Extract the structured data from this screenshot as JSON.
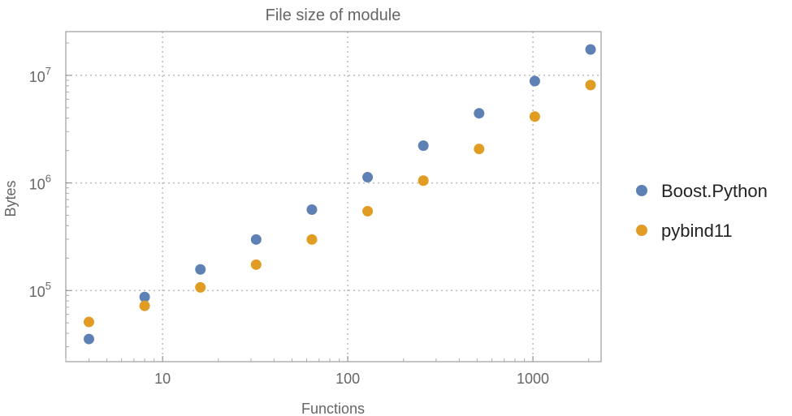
{
  "chart_data": {
    "type": "scatter",
    "title": "File size of module",
    "xlabel": "Functions",
    "ylabel": "Bytes",
    "xscale": "log",
    "yscale": "log",
    "xlim": [
      3.0,
      2335
    ],
    "ylim": [
      21800,
      25500000
    ],
    "grid": true,
    "legend_position": "right",
    "x_ticks": [
      {
        "value": 10,
        "label": "10"
      },
      {
        "value": 100,
        "label": "100"
      },
      {
        "value": 1000,
        "label": "1000"
      }
    ],
    "y_ticks": [
      {
        "value": 100000,
        "base": "10",
        "exp": "5"
      },
      {
        "value": 1000000,
        "base": "10",
        "exp": "6"
      },
      {
        "value": 10000000,
        "base": "10",
        "exp": "7"
      }
    ],
    "x": [
      4,
      8,
      16,
      32,
      64,
      128,
      256,
      512,
      1024,
      2048
    ],
    "series": [
      {
        "name": "Boost.Python",
        "color": "#5E81B5",
        "values": [
          35400,
          87000,
          157000,
          298000,
          565000,
          1130000,
          2220000,
          4440000,
          8850000,
          17400000
        ]
      },
      {
        "name": "pybind11",
        "color": "#E19C24",
        "values": [
          51000,
          72000,
          107000,
          174000,
          298000,
          546000,
          1050000,
          2070000,
          4140000,
          8130000
        ]
      }
    ]
  }
}
